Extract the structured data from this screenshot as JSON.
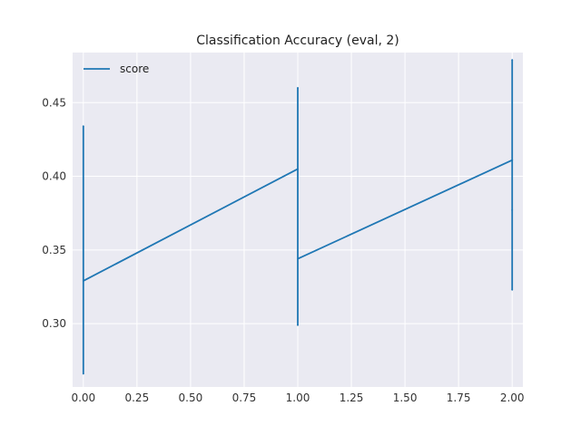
{
  "chart_data": {
    "type": "line",
    "title": "Classification Accuracy (eval, 2)",
    "xlabel": "",
    "ylabel": "",
    "xlim": [
      -0.05,
      2.05
    ],
    "ylim": [
      0.257,
      0.484
    ],
    "x_ticks": [
      0.0,
      0.25,
      0.5,
      0.75,
      1.0,
      1.25,
      1.5,
      1.75,
      2.0
    ],
    "x_tick_labels": [
      "0.00",
      "0.25",
      "0.50",
      "0.75",
      "1.00",
      "1.25",
      "1.50",
      "1.75",
      "2.00"
    ],
    "y_ticks": [
      0.3,
      0.35,
      0.4,
      0.45
    ],
    "y_tick_labels": [
      "0.30",
      "0.35",
      "0.40",
      "0.45"
    ],
    "grid": true,
    "legend": {
      "position": "top-left",
      "entries": [
        "score"
      ]
    },
    "series": [
      {
        "name": "score",
        "color": "#1f77b4",
        "x": [
          0.0,
          0.0,
          0.0,
          0.0,
          1.0,
          1.0,
          1.0,
          1.0,
          2.0,
          2.0,
          2.0,
          2.0,
          2.0,
          2.0
        ],
        "y": [
          0.329,
          0.434,
          0.266,
          0.329,
          0.405,
          0.46,
          0.299,
          0.344,
          0.411,
          0.479,
          0.411,
          0.377,
          0.323,
          0.377
        ]
      }
    ]
  },
  "colors": {
    "plot_background": "#eaeaf2",
    "grid": "#ffffff",
    "line": "#1f77b4"
  }
}
